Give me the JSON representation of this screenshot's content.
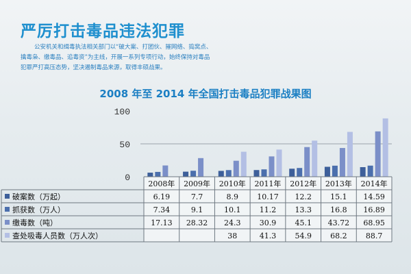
{
  "page": {
    "title": "严厉打击毒品违法犯罪",
    "intro_lines": [
      "公安机关和缉毒执法相关部门以“破大案、打团伙、摧网络、捣窝点、",
      "擒毒枭、缴毒品、追毒资”为主线，开展一系列专项行动，始终保持对毒品",
      "犯罪严打高压态势，坚决遏制毒品来源，取得丰硕战果。"
    ]
  },
  "chart_data": {
    "type": "bar",
    "title": "2008 年至 2014 年全国打击毒品犯罪战果图",
    "categories": [
      "2008年",
      "2009年",
      "2010年",
      "2011年",
      "2012年",
      "2013年",
      "2014年"
    ],
    "yticks": [
      "100",
      "50",
      "0"
    ],
    "ylim": [
      0,
      100
    ],
    "grid": true,
    "colors": [
      "#3d5f9a",
      "#4b6fad",
      "#7b8fc8",
      "#b3bfe4"
    ],
    "series": [
      {
        "name": "破案数（万起）",
        "values": [
          6.19,
          7.7,
          8.9,
          10.17,
          12.2,
          15.1,
          14.59
        ],
        "labels": [
          "6.19",
          "7.7",
          "8.9",
          "10.17",
          "12.2",
          "15.1",
          "14.59"
        ]
      },
      {
        "name": "抓获数（万人）",
        "values": [
          7.34,
          9.1,
          10.1,
          11.2,
          13.3,
          16.8,
          16.89
        ],
        "labels": [
          "7.34",
          "9.1",
          "10.1",
          "11.2",
          "13.3",
          "16.8",
          "16.89"
        ]
      },
      {
        "name": "缴毒数（吨）",
        "values": [
          17.13,
          28.32,
          24.3,
          30.9,
          45.1,
          43.72,
          68.95
        ],
        "labels": [
          "17.13",
          "28.32",
          "24.3",
          "30.9",
          "45.1",
          "43.72",
          "68.95"
        ]
      },
      {
        "name": "查处吸毒人员数（万人次）",
        "values": [
          null,
          null,
          38,
          41.3,
          54.9,
          68.2,
          88.7
        ],
        "labels": [
          "",
          "",
          "38",
          "41.3",
          "54.9",
          "68.2",
          "88.7"
        ]
      }
    ]
  }
}
